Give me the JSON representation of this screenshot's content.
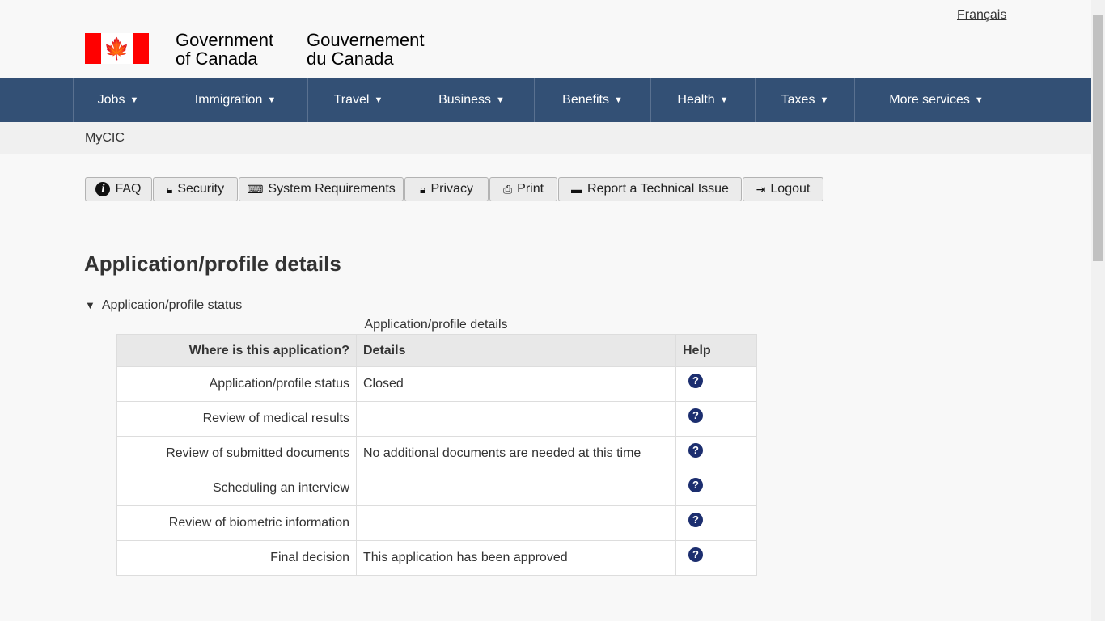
{
  "header": {
    "language_link": "Français",
    "signature_en": [
      "Government",
      "of Canada"
    ],
    "signature_fr": [
      "Gouvernement",
      "du Canada"
    ],
    "flag_colors": {
      "red": "#ff0000",
      "white": "#ffffff"
    }
  },
  "nav": {
    "color": "#335075",
    "items": [
      {
        "label": "Jobs"
      },
      {
        "label": "Immigration"
      },
      {
        "label": "Travel"
      },
      {
        "label": "Business"
      },
      {
        "label": "Benefits"
      },
      {
        "label": "Health"
      },
      {
        "label": "Taxes"
      },
      {
        "label": "More services"
      }
    ]
  },
  "breadcrumb": "MyCIC",
  "toolbar": [
    {
      "label": "FAQ",
      "icon": "info-icon"
    },
    {
      "label": "Security",
      "icon": "lock-icon"
    },
    {
      "label": "System Requirements",
      "icon": "keyboard-icon"
    },
    {
      "label": "Privacy",
      "icon": "lock-icon"
    },
    {
      "label": "Print",
      "icon": "print-icon"
    },
    {
      "label": "Report a Technical Issue",
      "icon": "comment-icon"
    },
    {
      "label": "Logout",
      "icon": "logout-icon"
    }
  ],
  "main": {
    "title": "Application/profile details",
    "summary": "Application/profile status",
    "table": {
      "caption": "Application/profile details",
      "headers": [
        "Where is this application?",
        "Details",
        "Help"
      ],
      "rows": [
        {
          "step": "Application/profile status",
          "details": "Closed"
        },
        {
          "step": "Review of medical results",
          "details": ""
        },
        {
          "step": "Review of submitted documents",
          "details": "No additional documents are needed at this time"
        },
        {
          "step": "Scheduling an interview",
          "details": ""
        },
        {
          "step": "Review of biometric information",
          "details": ""
        },
        {
          "step": "Final decision",
          "details": "This application has been approved"
        }
      ]
    }
  }
}
